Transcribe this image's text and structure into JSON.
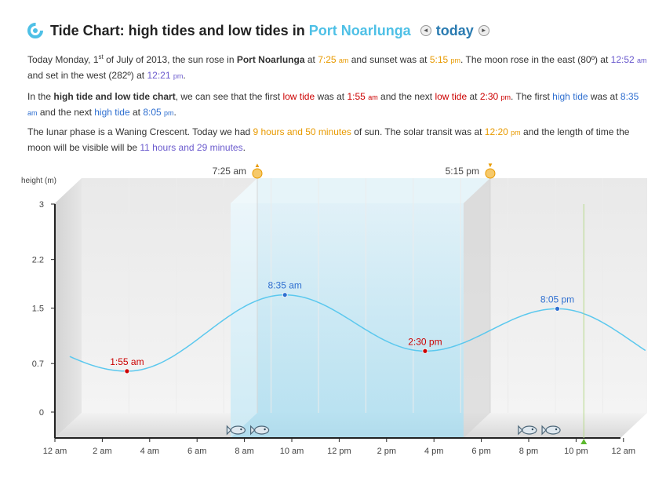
{
  "header": {
    "title": "Tide Chart: high tides and low tides in",
    "place": "Port Noarlunga",
    "prev_glyph": "◄",
    "today_label": "today",
    "next_glyph": "►"
  },
  "para1": {
    "t1": "Today Monday, 1",
    "sup": "st",
    "t2": " of July of 2013, the sun rose in ",
    "place": "Port Noarlunga",
    "t3": " at ",
    "sunrise": "7:25",
    "sunrise_ampm": "am",
    "t4": " and sunset was at ",
    "sunset": "5:15",
    "sunset_ampm": "pm",
    "t5": ". The moon rose in the east (80º) at ",
    "moonrise": "12:52",
    "moonrise_ampm": "am",
    "t6": " and set in the west (282º) at ",
    "moonset": "12:21",
    "moonset_ampm": "pm",
    "t7": "."
  },
  "para2": {
    "t1": "In the ",
    "bold": "high tide and low tide chart",
    "t2": ", we can see that the first ",
    "low1_label": "low tide",
    "t3": " was at ",
    "low1_time": "1:55",
    "low1_ampm": "am",
    "t4": " and the next ",
    "low2_label": "low tide",
    "t5": " at ",
    "low2_time": "2:30",
    "low2_ampm": "pm",
    "t6": ". The first ",
    "high1_label": "high tide",
    "t7": " was at ",
    "high1_time": "8:35",
    "high1_ampm": "am",
    "t8": " and the next ",
    "high2_label": "high tide",
    "t9": " at ",
    "high2_time": "8:05",
    "high2_ampm": "pm",
    "t10": "."
  },
  "para3": {
    "t1": "The lunar phase is a Waning Crescent. Today we had ",
    "sun_hours": "9 hours and 50 minutes",
    "t2": " of sun. The solar transit was at ",
    "transit": "12:20",
    "transit_ampm": "pm",
    "t3": " and the length of time the moon will be visible will be ",
    "moon_visible": "11 hours and 29 minutes",
    "t4": "."
  },
  "chart_data": {
    "type": "line",
    "ylabel": "height (m)",
    "yticks": [
      "3",
      "2.2",
      "1.5",
      "0.7",
      "0"
    ],
    "ytick_values": [
      3,
      2.2,
      1.5,
      0.7,
      0
    ],
    "ylim": [
      0,
      3
    ],
    "xlim": [
      0,
      24
    ],
    "xticks": [
      "12 am",
      "2 am",
      "4 am",
      "6 am",
      "8 am",
      "10 am",
      "12 pm",
      "2 pm",
      "4 pm",
      "6 pm",
      "8 pm",
      "10 pm",
      "12 am"
    ],
    "daylight": {
      "start": 7.417,
      "end": 17.25,
      "sunrise_label": "7:25 am",
      "sunset_label": "5:15 pm"
    },
    "tides": [
      {
        "time": 1.917,
        "height": 0.59,
        "label": "1:55 am",
        "kind": "low"
      },
      {
        "time": 8.583,
        "height": 1.69,
        "label": "8:35 am",
        "kind": "high"
      },
      {
        "time": 14.5,
        "height": 0.88,
        "label": "2:30 pm",
        "kind": "low"
      },
      {
        "time": 20.083,
        "height": 1.49,
        "label": "8:05 pm",
        "kind": "high"
      }
    ],
    "start_height": 0.75,
    "end_height": 0.75,
    "moon_marker_time": 21.2,
    "fish_times": [
      7.0,
      8.0,
      19.3,
      20.3
    ],
    "colors": {
      "curve": "#5bc8ee",
      "low": "#cc0000",
      "high": "#2f6fd0",
      "sun": "#e89a00"
    }
  }
}
